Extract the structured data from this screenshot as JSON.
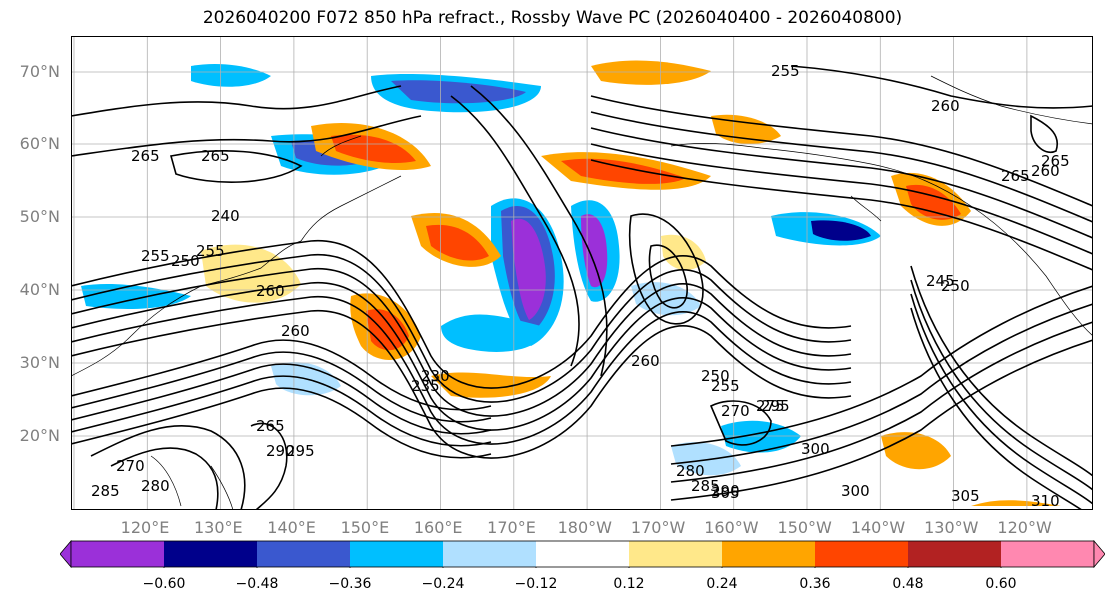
{
  "title": "2026040200 F072 850 hPa refract., Rossby Wave PC (2026040400 - 2026040800)",
  "lat_labels": [
    "70°N",
    "60°N",
    "50°N",
    "40°N",
    "30°N",
    "20°N"
  ],
  "lon_labels": [
    "120°E",
    "130°E",
    "140°E",
    "150°E",
    "160°E",
    "170°E",
    "180°W",
    "170°W",
    "160°W",
    "150°W",
    "140°W",
    "130°W",
    "120°W"
  ],
  "colorbar": {
    "ticks": [
      "−0.60",
      "−0.48",
      "−0.36",
      "−0.24",
      "−0.12",
      "0.12",
      "0.24",
      "0.36",
      "0.48",
      "0.60"
    ],
    "colors": [
      "#9b30d9",
      "#00008b",
      "#3a58cf",
      "#00bfff",
      "#b0e0ff",
      "#ffffff",
      "#ffe88a",
      "#ffa500",
      "#ff4500",
      "#b22222",
      "#ff88b0"
    ]
  },
  "contour_labels": [
    "265",
    "260",
    "255",
    "260",
    "265",
    "260",
    "265",
    "255",
    "260",
    "265",
    "250",
    "255",
    "260",
    "270",
    "275",
    "280",
    "285",
    "290",
    "295",
    "300",
    "305",
    "240",
    "245",
    "250",
    "265",
    "270",
    "280",
    "285",
    "290",
    "295",
    "300",
    "305",
    "310",
    "230",
    "235",
    "250",
    "255"
  ],
  "colors": {
    "gray_label": "#808080",
    "contour": "#000000",
    "grid": "#b0b0b0"
  }
}
